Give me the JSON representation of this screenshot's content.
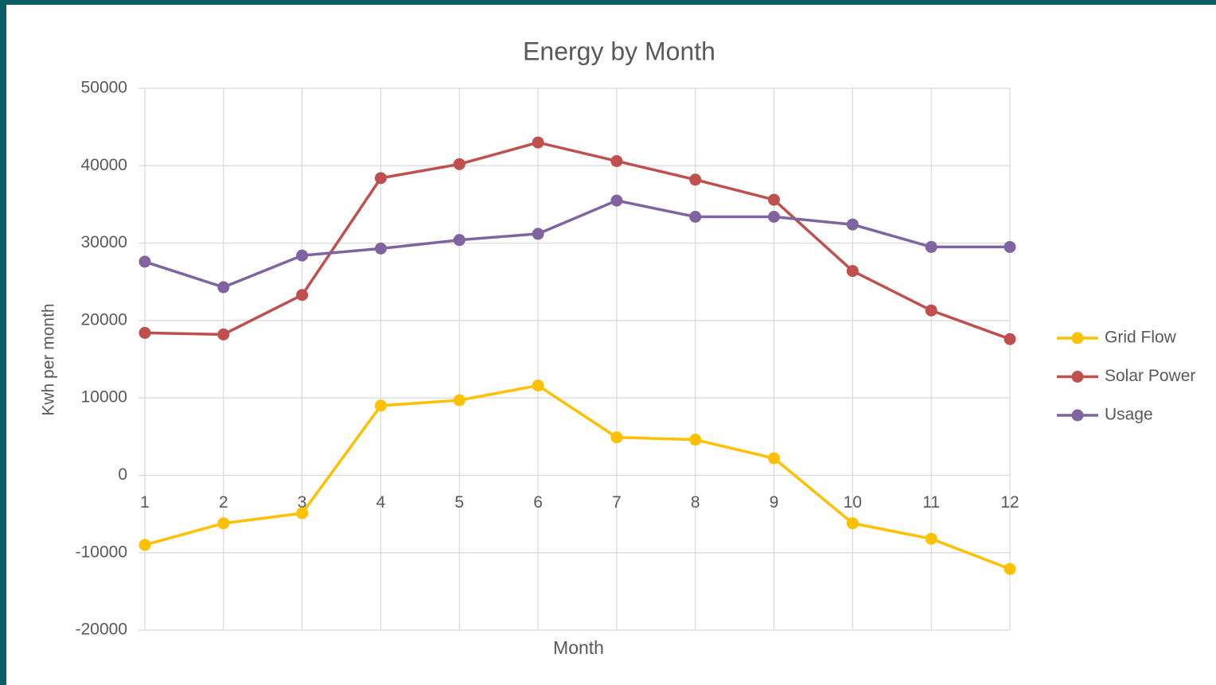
{
  "chart_data": {
    "type": "line",
    "title": "Energy by Month",
    "xlabel": "Month",
    "ylabel": "Kwh per month",
    "x": [
      1,
      2,
      3,
      4,
      5,
      6,
      7,
      8,
      9,
      10,
      11,
      12
    ],
    "xlim": [
      1,
      12
    ],
    "xticks": [
      1,
      2,
      3,
      4,
      5,
      6,
      7,
      8,
      9,
      10,
      11,
      12
    ],
    "ylim": [
      -20000,
      50000
    ],
    "yticks": [
      -20000,
      -10000,
      0,
      10000,
      20000,
      30000,
      40000,
      50000
    ],
    "grid": true,
    "legend": "right",
    "series": [
      {
        "name": "Grid Flow",
        "color": "#ffc000",
        "values": [
          -9000,
          -6200,
          -4900,
          9000,
          9700,
          11600,
          4900,
          4600,
          2200,
          -6200,
          -8200,
          -12100
        ]
      },
      {
        "name": "Solar Power",
        "color": "#c0504d",
        "values": [
          18400,
          18200,
          23300,
          38400,
          40200,
          43000,
          40600,
          38200,
          35600,
          26400,
          21300,
          17600
        ]
      },
      {
        "name": "Usage",
        "color": "#8064a2",
        "values": [
          27600,
          24300,
          28400,
          29300,
          30400,
          31200,
          35500,
          33400,
          33400,
          32400,
          29500,
          29500
        ]
      }
    ]
  }
}
